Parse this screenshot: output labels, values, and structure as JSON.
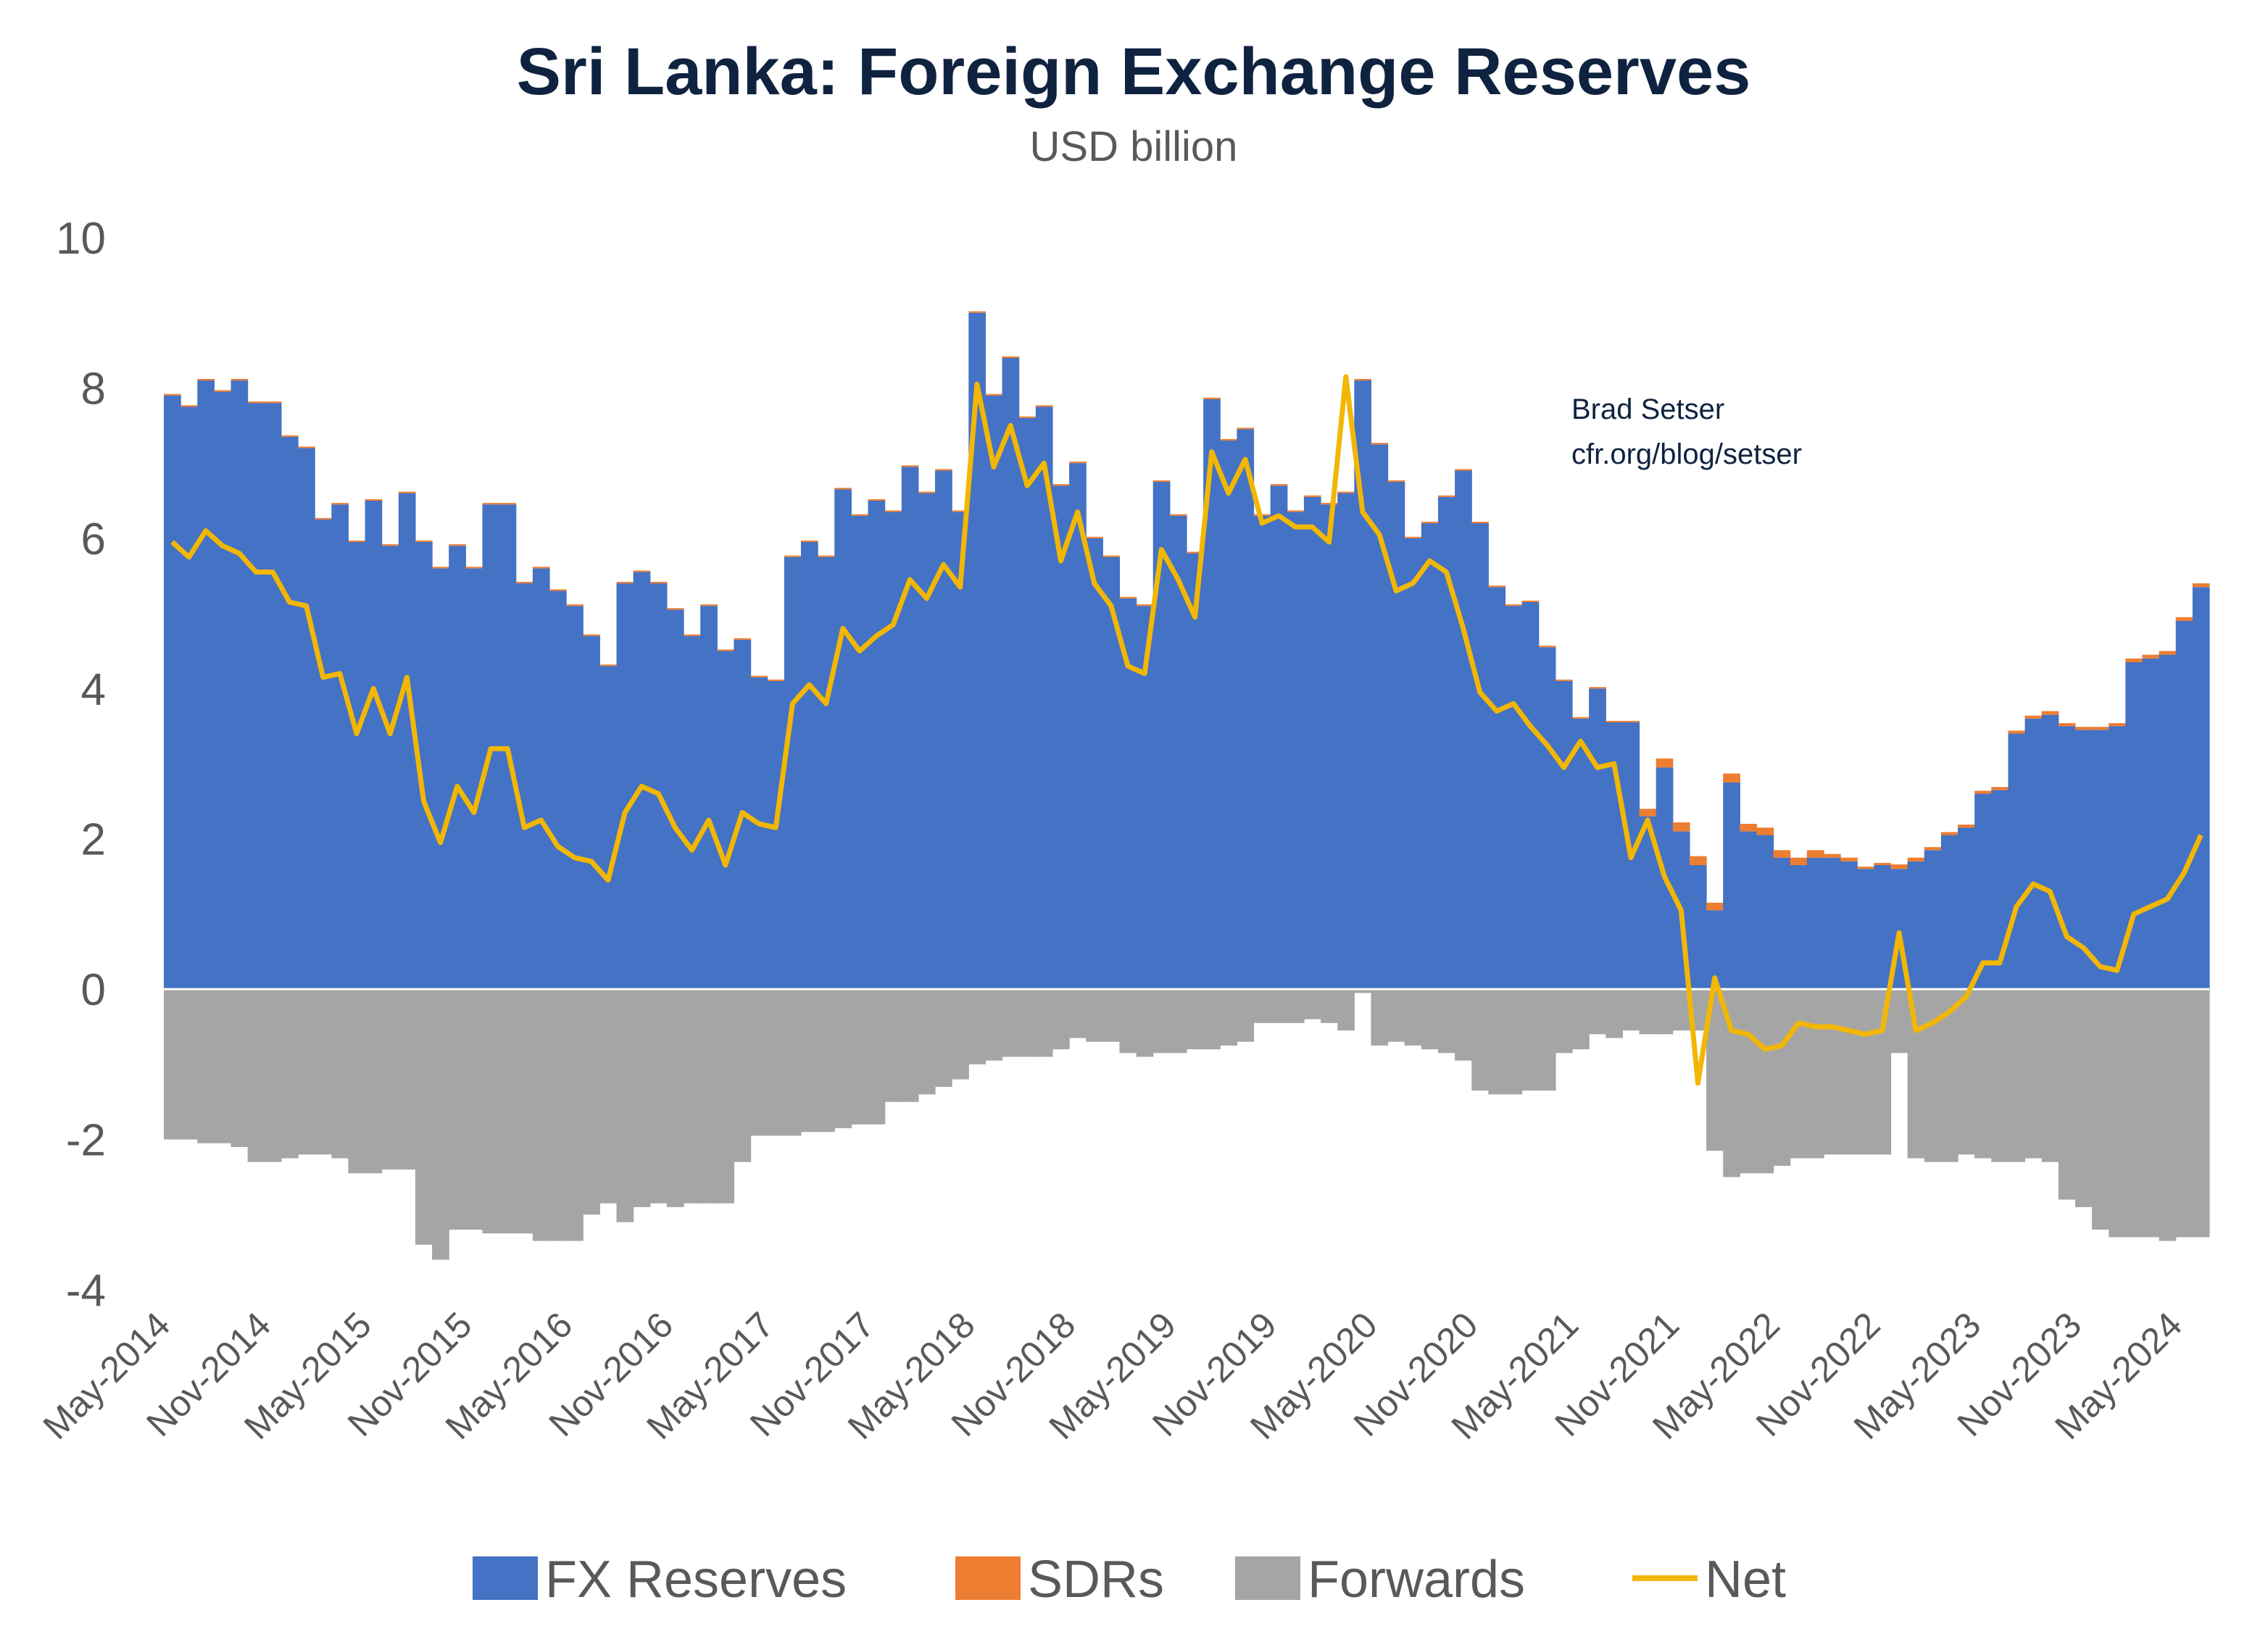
{
  "chart_data": {
    "type": "bar",
    "title": "Sri Lanka: Foreign Exchange Reserves",
    "subtitle": "USD billion",
    "xlabel": "",
    "ylabel": "",
    "ylim": [
      -4,
      10
    ],
    "yticks": [
      10,
      8,
      6,
      4,
      2,
      0,
      -2,
      -4
    ],
    "x_tick_labels": [
      "May-2014",
      "Nov-2014",
      "May-2015",
      "Nov-2015",
      "May-2016",
      "Nov-2016",
      "May-2017",
      "Nov-2017",
      "May-2018",
      "Nov-2018",
      "May-2019",
      "Nov-2019",
      "May-2020",
      "Nov-2020",
      "May-2021",
      "Nov-2021",
      "May-2022",
      "Nov-2022",
      "May-2023",
      "Nov-2023",
      "May-2024"
    ],
    "annotation": [
      "Brad Setser",
      "cfr.org/blog/setser"
    ],
    "grid": false,
    "legend_position": "bottom",
    "series": [
      {
        "name": "FX Reserves",
        "type": "bar",
        "color": "#4472c4",
        "values": [
          7.9,
          7.75,
          8.1,
          7.95,
          8.1,
          7.8,
          7.8,
          7.35,
          7.2,
          6.25,
          6.45,
          5.95,
          6.5,
          5.9,
          6.6,
          5.95,
          5.6,
          5.9,
          5.6,
          6.45,
          6.45,
          5.4,
          5.6,
          5.3,
          5.1,
          4.7,
          4.3,
          5.4,
          5.55,
          5.4,
          5.05,
          4.7,
          5.1,
          4.5,
          4.65,
          4.15,
          4.1,
          5.75,
          5.95,
          5.75,
          6.65,
          6.3,
          6.5,
          6.35,
          6.95,
          6.6,
          6.9,
          6.35,
          9.0,
          7.9,
          8.4,
          7.6,
          7.75,
          6.7,
          7.0,
          6.0,
          5.75,
          5.2,
          5.1,
          6.75,
          6.3,
          5.8,
          7.85,
          7.3,
          7.45,
          6.3,
          6.7,
          6.35,
          6.55,
          6.45,
          6.6,
          8.1,
          7.25,
          6.75,
          6.0,
          6.2,
          6.55,
          6.9,
          6.2,
          5.35,
          5.1,
          5.15,
          4.55,
          4.1,
          3.6,
          4.0,
          3.55,
          3.55,
          2.3,
          2.95,
          2.1,
          1.65,
          1.05,
          2.75,
          2.1,
          2.05,
          1.75,
          1.65,
          1.75,
          1.75,
          1.7,
          1.6,
          1.65,
          1.6,
          1.7,
          1.85,
          2.05,
          2.15,
          2.6,
          2.65,
          3.4,
          3.6,
          3.65,
          3.5,
          3.45,
          3.45,
          3.5,
          4.35,
          4.4,
          4.45,
          4.9,
          5.35
        ]
      },
      {
        "name": "SDRs",
        "type": "bar",
        "color": "#ed7d31",
        "values": [
          0.02,
          0.02,
          0.02,
          0.02,
          0.02,
          0.02,
          0.02,
          0.02,
          0.02,
          0.02,
          0.02,
          0.02,
          0.02,
          0.02,
          0.02,
          0.02,
          0.02,
          0.02,
          0.02,
          0.02,
          0.02,
          0.02,
          0.02,
          0.02,
          0.02,
          0.02,
          0.02,
          0.02,
          0.02,
          0.02,
          0.02,
          0.02,
          0.02,
          0.02,
          0.02,
          0.02,
          0.02,
          0.02,
          0.02,
          0.02,
          0.02,
          0.02,
          0.02,
          0.02,
          0.02,
          0.02,
          0.02,
          0.02,
          0.02,
          0.02,
          0.02,
          0.02,
          0.02,
          0.02,
          0.02,
          0.02,
          0.02,
          0.02,
          0.02,
          0.02,
          0.02,
          0.02,
          0.02,
          0.02,
          0.02,
          0.02,
          0.02,
          0.02,
          0.02,
          0.02,
          0.02,
          0.02,
          0.02,
          0.02,
          0.02,
          0.02,
          0.02,
          0.02,
          0.02,
          0.02,
          0.02,
          0.02,
          0.02,
          0.02,
          0.02,
          0.02,
          0.02,
          0.02,
          0.1,
          0.12,
          0.12,
          0.12,
          0.1,
          0.12,
          0.1,
          0.1,
          0.1,
          0.1,
          0.1,
          0.05,
          0.05,
          0.03,
          0.03,
          0.06,
          0.05,
          0.04,
          0.04,
          0.04,
          0.04,
          0.04,
          0.04,
          0.04,
          0.05,
          0.04,
          0.04,
          0.04,
          0.04,
          0.05,
          0.05,
          0.05,
          0.05,
          0.05
        ]
      },
      {
        "name": "Forwards",
        "type": "bar",
        "color": "#a5a5a5",
        "values": [
          -2.0,
          -2.0,
          -2.05,
          -2.05,
          -2.1,
          -2.3,
          -2.3,
          -2.25,
          -2.2,
          -2.2,
          -2.25,
          -2.45,
          -2.45,
          -2.4,
          -2.4,
          -3.4,
          -3.6,
          -3.2,
          -3.2,
          -3.25,
          -3.25,
          -3.25,
          -3.35,
          -3.35,
          -3.35,
          -3.0,
          -2.85,
          -3.1,
          -2.9,
          -2.85,
          -2.9,
          -2.85,
          -2.85,
          -2.85,
          -2.3,
          -1.95,
          -1.95,
          -1.95,
          -1.9,
          -1.9,
          -1.85,
          -1.8,
          -1.8,
          -1.5,
          -1.5,
          -1.4,
          -1.3,
          -1.2,
          -1.0,
          -0.95,
          -0.9,
          -0.9,
          -0.9,
          -0.8,
          -0.65,
          -0.7,
          -0.7,
          -0.85,
          -0.9,
          -0.85,
          -0.85,
          -0.8,
          -0.8,
          -0.75,
          -0.7,
          -0.45,
          -0.45,
          -0.45,
          -0.4,
          -0.45,
          -0.55,
          -0.05,
          -0.75,
          -0.7,
          -0.75,
          -0.8,
          -0.85,
          -0.95,
          -1.35,
          -1.4,
          -1.4,
          -1.35,
          -1.35,
          -0.85,
          -0.8,
          -0.6,
          -0.65,
          -0.55,
          -0.6,
          -0.6,
          -0.55,
          -0.55,
          -2.15,
          -2.5,
          -2.45,
          -2.45,
          -2.35,
          -2.25,
          -2.25,
          -2.2,
          -2.2,
          -2.2,
          -2.2,
          -0.85,
          -2.25,
          -2.3,
          -2.3,
          -2.2,
          -2.25,
          -2.3,
          -2.3,
          -2.25,
          -2.3,
          -2.8,
          -2.9,
          -3.2,
          -3.3,
          -3.3,
          -3.3,
          -3.35,
          -3.3,
          -3.3
        ]
      },
      {
        "name": "Net",
        "type": "line",
        "color": "#f2b705",
        "values": [
          5.95,
          5.75,
          6.1,
          5.9,
          5.8,
          5.55,
          5.55,
          5.15,
          5.1,
          4.15,
          4.2,
          3.4,
          4.0,
          3.4,
          4.15,
          2.5,
          1.95,
          2.7,
          2.35,
          3.2,
          3.2,
          2.15,
          2.25,
          1.9,
          1.75,
          1.7,
          1.45,
          2.35,
          2.7,
          2.6,
          2.15,
          1.85,
          2.25,
          1.65,
          2.35,
          2.2,
          2.15,
          3.8,
          4.05,
          3.8,
          4.8,
          4.5,
          4.7,
          4.85,
          5.45,
          5.2,
          5.65,
          5.35,
          8.05,
          6.95,
          7.5,
          6.7,
          7.0,
          5.7,
          6.35,
          5.4,
          5.1,
          4.3,
          4.2,
          5.85,
          5.45,
          4.95,
          7.15,
          6.6,
          7.05,
          6.2,
          6.3,
          6.15,
          6.15,
          5.95,
          8.15,
          6.35,
          6.05,
          5.3,
          5.4,
          5.7,
          5.55,
          4.8,
          3.95,
          3.7,
          3.8,
          3.5,
          3.25,
          2.95,
          3.3,
          2.95,
          3.0,
          1.75,
          2.25,
          1.5,
          1.05,
          -1.25,
          0.15,
          -0.55,
          -0.6,
          -0.8,
          -0.75,
          -0.45,
          -0.5,
          -0.5,
          -0.55,
          -0.6,
          -0.55,
          0.75,
          -0.55,
          -0.45,
          -0.3,
          -0.1,
          0.35,
          0.35,
          1.1,
          1.4,
          1.3,
          0.7,
          0.55,
          0.3,
          0.25,
          1.0,
          1.1,
          1.2,
          1.55,
          2.05
        ]
      }
    ]
  }
}
